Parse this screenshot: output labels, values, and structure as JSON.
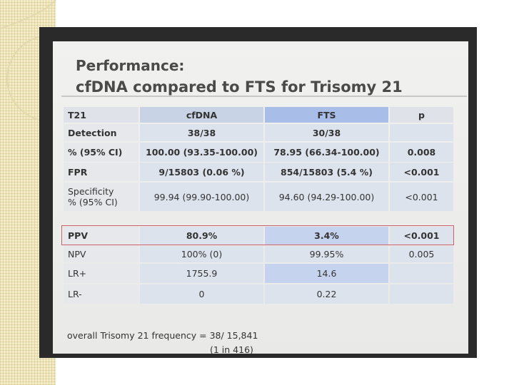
{
  "slide": {
    "title": [
      "Performance:",
      "cfDNA compared to FTS for Trisomy 21"
    ],
    "table1": {
      "header": [
        "T21",
        "cfDNA",
        "FTS",
        "p"
      ],
      "rows": [
        [
          [
            "Detection"
          ],
          "38/38",
          "30/38",
          null
        ],
        [
          [
            "% (95% CI)"
          ],
          "100.00 (93.35-100.00)",
          "78.95 (66.34-100.00)",
          "0.008"
        ],
        [
          [
            "FPR"
          ],
          "9/15803 (0.06 %)",
          "854/15803 (5.4 %)",
          "<0.001"
        ],
        [
          [
            "Specificity",
            "% (95% CI)"
          ],
          "99.94 (99.90-100.00)",
          "94.60 (94.29-100.00)",
          "<0.001"
        ]
      ]
    },
    "table2": {
      "rows": [
        [
          [
            "PPV"
          ],
          "80.9%",
          "3.4%",
          "<0.001"
        ],
        [
          [
            "NPV"
          ],
          "100% (0)",
          "99.95%",
          "0.005"
        ],
        [
          [
            "LR+"
          ],
          "1755.9",
          "14.6",
          null
        ],
        [
          [
            "LR-"
          ],
          "0",
          "0.22",
          null
        ]
      ]
    },
    "footnote": [
      "overall Trisomy 21 frequency = 38/ 15,841",
      "(1 in 416)"
    ]
  }
}
